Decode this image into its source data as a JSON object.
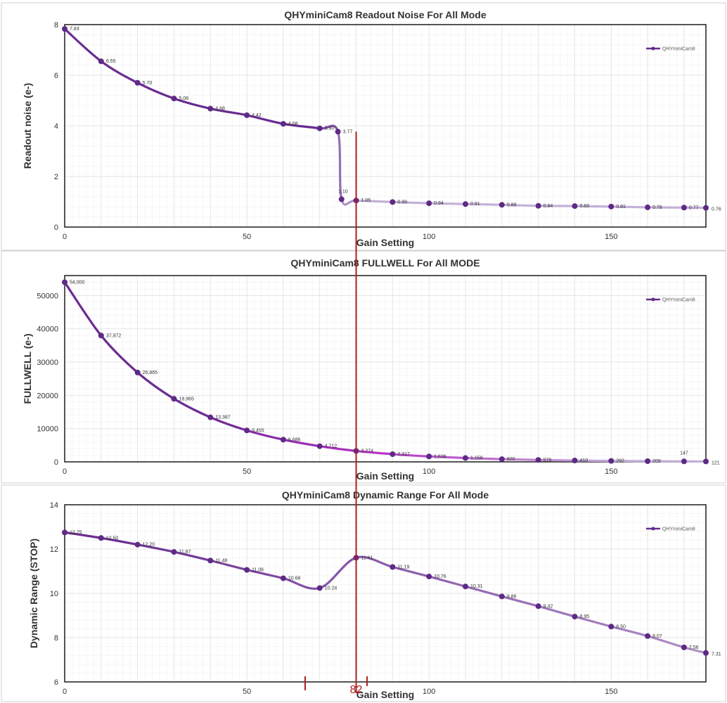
{
  "legend_series_name": "QHYminiCam8",
  "annotation": {
    "marker_value": "82",
    "marker_gain": 80,
    "left_tick_gain": 66,
    "right_tick_gain": 83,
    "color": "#b01e1e"
  },
  "colors": {
    "dark_purple": "#6a2c91",
    "light_purple": "#c4b0d8",
    "magenta": "#b830c8",
    "marker": "#5e2a86"
  },
  "chart_data": [
    {
      "type": "line",
      "title": "QHYminiCam8  Readout Noise For All Mode",
      "xlabel": "Gain Setting",
      "ylabel": "Readout noise (e-)",
      "xlim": [
        0,
        176
      ],
      "ylim": [
        0,
        8
      ],
      "xticks": [
        0,
        50,
        100,
        150
      ],
      "xtick_labels": [
        "0",
        "50",
        "100",
        "150"
      ],
      "yticks": [
        0,
        2,
        4,
        6,
        8
      ],
      "ytick_labels": [
        "0",
        "2",
        "4",
        "6",
        "8"
      ],
      "legend": "top-right",
      "color_mode": "readnoise",
      "series": [
        {
          "name": "QHYminiCam8",
          "x": [
            0,
            10,
            20,
            30,
            40,
            50,
            60,
            70,
            75,
            76,
            80,
            90,
            100,
            110,
            120,
            130,
            140,
            150,
            160,
            170,
            176
          ],
          "y": [
            7.83,
            6.55,
            5.7,
            5.08,
            4.68,
            4.42,
            4.08,
            3.9,
            3.77,
            1.1,
            1.05,
            0.99,
            0.94,
            0.91,
            0.88,
            0.84,
            0.83,
            0.81,
            0.78,
            0.77,
            0.76
          ],
          "labels": [
            "7.83",
            "6.55",
            "5.70",
            "5.08",
            "4.68",
            "4.42",
            "4.08",
            "3.90",
            "3.77",
            "1.10",
            "1.05",
            "0.99",
            "0.94",
            "0.91",
            "0.88",
            "0.84",
            "0.83",
            "0.81",
            "0.78",
            "0.77",
            "0.76"
          ]
        }
      ]
    },
    {
      "type": "line",
      "title": "QHYminiCam8  FULLWELL For All MODE",
      "xlabel": "Gain Setting",
      "ylabel": "FULLWELL (e-)",
      "xlim": [
        0,
        176
      ],
      "ylim": [
        0,
        56000
      ],
      "xticks": [
        0,
        50,
        100,
        150
      ],
      "xtick_labels": [
        "0",
        "50",
        "100",
        "150"
      ],
      "yticks": [
        0,
        10000,
        20000,
        30000,
        40000,
        50000
      ],
      "ytick_labels": [
        "0",
        "10000",
        "20000",
        "30000",
        "40000",
        "50000"
      ],
      "legend": "top-right",
      "color_mode": "fullwell",
      "series": [
        {
          "name": "QHYminiCam8",
          "x": [
            0,
            10,
            20,
            30,
            40,
            50,
            60,
            70,
            80,
            90,
            100,
            110,
            120,
            130,
            140,
            150,
            160,
            170,
            176
          ],
          "y": [
            54000,
            37972,
            26865,
            18965,
            13387,
            9455,
            6686,
            4712,
            3274,
            2317,
            1636,
            1158,
            820,
            579,
            410,
            292,
            209,
            147,
            121
          ],
          "labels": [
            "54,000",
            "37,972",
            "26,865",
            "18,965",
            "13,387",
            "9,455",
            "6,686",
            "4,712",
            "3,274",
            "2,317",
            "1,636",
            "1,158",
            "820",
            "579",
            "410",
            "292",
            "209",
            "147",
            "121"
          ]
        }
      ]
    },
    {
      "type": "line",
      "title": "QHYminiCam8 Dynamic Range For All Mode",
      "xlabel": "Gain Setting",
      "ylabel": "Dynamic Range (STOP)",
      "xlim": [
        0,
        176
      ],
      "ylim": [
        6,
        14
      ],
      "xticks": [
        0,
        50,
        100,
        150
      ],
      "xtick_labels": [
        "0",
        "50",
        "100",
        "150"
      ],
      "yticks": [
        6,
        8,
        10,
        12,
        14
      ],
      "ytick_labels": [
        "6",
        "8",
        "10",
        "12",
        "14"
      ],
      "legend": "top-right",
      "color_mode": "dynrange",
      "series": [
        {
          "name": "QHYminiCam8",
          "x": [
            0,
            10,
            20,
            30,
            40,
            50,
            60,
            70,
            80,
            90,
            100,
            110,
            120,
            130,
            140,
            150,
            160,
            170,
            176
          ],
          "y": [
            12.75,
            12.5,
            12.2,
            11.87,
            11.48,
            11.06,
            10.68,
            10.24,
            11.61,
            11.19,
            10.76,
            10.31,
            9.86,
            9.42,
            8.95,
            8.5,
            8.07,
            7.56,
            7.31
          ],
          "labels": [
            "12.75",
            "12.50",
            "12.20",
            "11.87",
            "11.48",
            "11.06",
            "10.68",
            "10.24",
            "11.61",
            "11.19",
            "10.76",
            "10.31",
            "9.86",
            "9.42",
            "8.95",
            "8.50",
            "8.07",
            "7.56",
            "7.31"
          ]
        }
      ]
    }
  ]
}
